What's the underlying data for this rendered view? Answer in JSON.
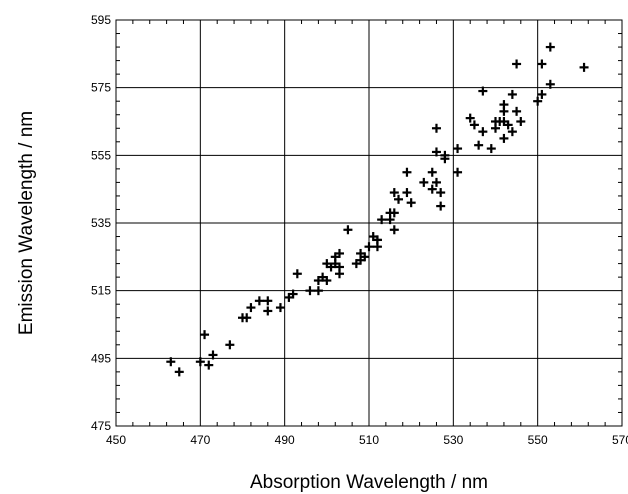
{
  "chart_data": {
    "type": "scatter",
    "title": "",
    "xlabel": "Absorption Wavelength / nm",
    "ylabel": "Emission Wavelength / nm",
    "xlim": [
      450,
      570
    ],
    "ylim": [
      475,
      595
    ],
    "xticks": [
      450,
      470,
      490,
      510,
      530,
      550,
      570
    ],
    "yticks": [
      475,
      495,
      515,
      535,
      555,
      575,
      595
    ],
    "grid": true,
    "marker": "+",
    "marker_color": "#000000",
    "series": [
      {
        "x": [
          463,
          465,
          470,
          471,
          472,
          473,
          477,
          480,
          481,
          482,
          484,
          486,
          486,
          489,
          491,
          492,
          493,
          496,
          498,
          498,
          499,
          500,
          500,
          501,
          502,
          502,
          503,
          503,
          503,
          505,
          507,
          508,
          508,
          509,
          510,
          511,
          512,
          512,
          512,
          513,
          515,
          515,
          516,
          516,
          516,
          517,
          519,
          519,
          520,
          523,
          525,
          525,
          526,
          526,
          526,
          527,
          527,
          528,
          528,
          531,
          531,
          534,
          535,
          536,
          537,
          537,
          539,
          540,
          540,
          541,
          542,
          542,
          542,
          542,
          543,
          544,
          544,
          545,
          545,
          546,
          550,
          551,
          551,
          553,
          553,
          561
        ],
        "y": [
          494,
          491,
          494,
          502,
          493,
          496,
          499,
          507,
          507,
          510,
          512,
          509,
          512,
          510,
          513,
          514,
          520,
          515,
          518,
          515,
          519,
          518,
          523,
          522,
          523,
          525,
          520,
          522,
          526,
          533,
          523,
          524,
          526,
          525,
          528,
          531,
          528,
          530,
          530,
          536,
          536,
          538,
          533,
          538,
          544,
          542,
          544,
          550,
          541,
          547,
          545,
          550,
          563,
          556,
          547,
          540,
          544,
          554,
          555,
          557,
          550,
          566,
          564,
          558,
          574,
          562,
          557,
          563,
          565,
          565,
          565,
          560,
          570,
          568,
          564,
          573,
          562,
          582,
          568,
          565,
          571,
          582,
          573,
          587,
          576,
          581
        ]
      }
    ]
  }
}
